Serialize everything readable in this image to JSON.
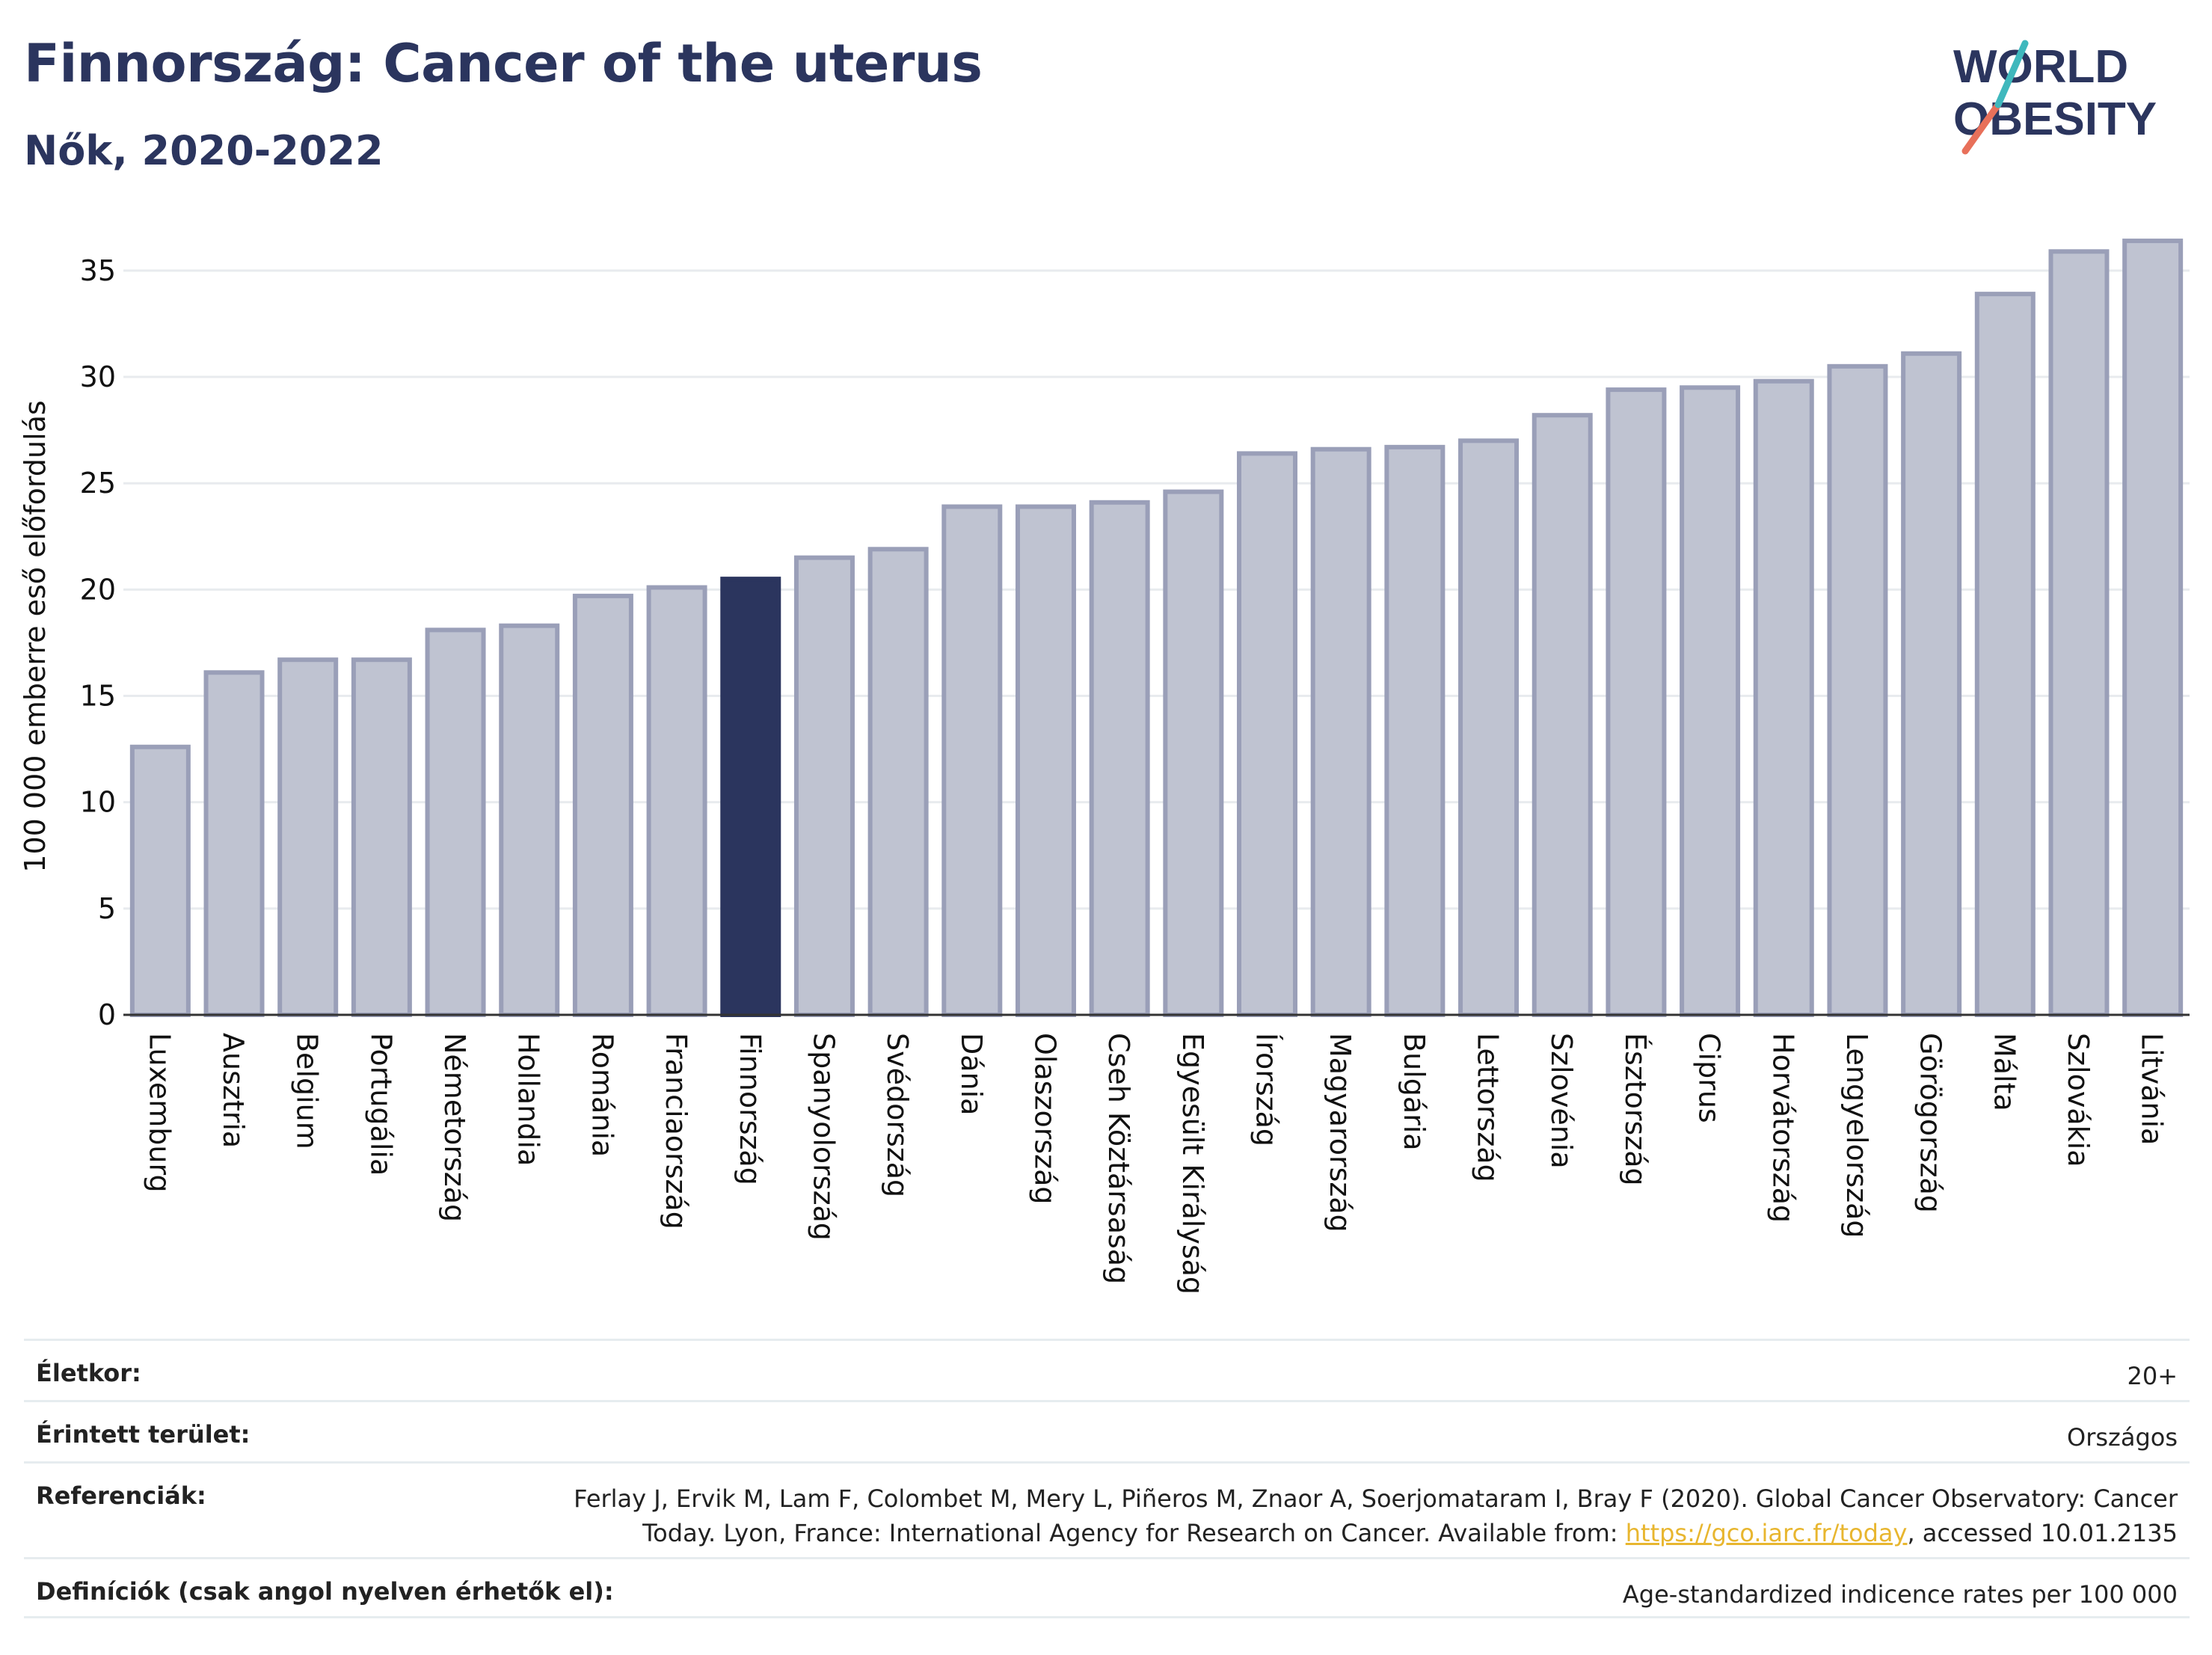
{
  "header": {
    "title": "Finnország: Cancer of the uterus",
    "subtitle": "Nők, 2020-2022"
  },
  "logo": {
    "line1": "WORLD",
    "line2": "OBESITY"
  },
  "colors": {
    "bar": "#bfc3d1",
    "bar_border": "#9a9fb8",
    "highlight": "#2b355e",
    "title": "#2b355e",
    "link": "#e8b62f"
  },
  "chart_data": {
    "type": "bar",
    "ylabel": "100 000 emberre eső előfordulás",
    "ylim": [
      0,
      37
    ],
    "yticks": [
      0,
      5,
      10,
      15,
      20,
      25,
      30,
      35
    ],
    "grid": true,
    "highlight": "Finnország",
    "categories": [
      "Luxemburg",
      "Ausztria",
      "Belgium",
      "Portugália",
      "Németország",
      "Hollandia",
      "Románia",
      "Franciaország",
      "Finnország",
      "Spanyolország",
      "Svédország",
      "Dánia",
      "Olaszország",
      "Cseh Köztársaság",
      "Egyesült Királyság",
      "Írország",
      "Magyarország",
      "Bulgária",
      "Lettország",
      "Szlovénia",
      "Észtország",
      "Ciprus",
      "Horvátország",
      "Lengyelország",
      "Görögország",
      "Málta",
      "Szlovákia",
      "Litvánia"
    ],
    "values": [
      12.6,
      16.1,
      16.7,
      16.7,
      18.1,
      18.3,
      19.7,
      20.1,
      20.5,
      21.5,
      21.9,
      23.9,
      23.9,
      24.1,
      24.6,
      26.4,
      26.6,
      26.7,
      27.0,
      28.2,
      29.4,
      29.5,
      29.8,
      30.5,
      31.1,
      33.9,
      35.9,
      36.4
    ]
  },
  "meta": [
    {
      "label": "Életkor:",
      "value": "20+"
    },
    {
      "label": "Érintett terület:",
      "value": "Országos"
    },
    {
      "label": "Referenciák:",
      "value_line1": "Ferlay J, Ervik M, Lam F, Colombet M, Mery L, Piñeros M, Znaor A, Soerjomataram I, Bray F (2020). Global Cancer Observatory: Cancer",
      "value_line2_pre": "Today. Lyon, France: International Agency for Research on Cancer. Available from: ",
      "link": "https://gco.iarc.fr/today",
      "value_line2_post": ", accessed 10.01.2135"
    },
    {
      "label": "Definíciók (csak angol nyelven érhetők el):",
      "value": "Age-standardized indicence rates per 100 000"
    }
  ]
}
